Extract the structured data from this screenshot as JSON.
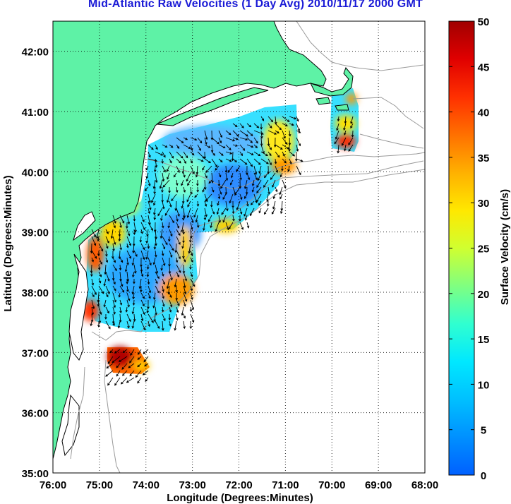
{
  "title": "Mid-Atlantic Raw Velocities (1 Day Avg) 2010/11/17 2000 GMT",
  "map": {
    "xlabel": "Longitude (Degrees:Minutes)",
    "ylabel": "Latitude (Degrees:Minutes)",
    "x_ticks": [
      "76:00",
      "75:00",
      "74:00",
      "73:00",
      "72:00",
      "71:00",
      "70:00",
      "69:00",
      "68:00"
    ],
    "y_ticks": [
      "42:00",
      "41:00",
      "40:00",
      "39:00",
      "38:00",
      "37:00",
      "36:00",
      "35:00"
    ],
    "lon_range": [
      -76,
      -68
    ],
    "lat_range": [
      35,
      42.5
    ],
    "grid": "dotted",
    "land_color": "#5ef2a6",
    "coast_color": "#000000",
    "bathymetry_color": "#9a9a9a",
    "vector_color": "#000000"
  },
  "colorbar": {
    "label": "Surface Velocity (cm/s)",
    "ticks": [
      "0",
      "5",
      "10",
      "15",
      "20",
      "25",
      "30",
      "35",
      "40",
      "45",
      "50"
    ],
    "range": [
      0,
      50
    ],
    "colormap": "jet"
  }
}
